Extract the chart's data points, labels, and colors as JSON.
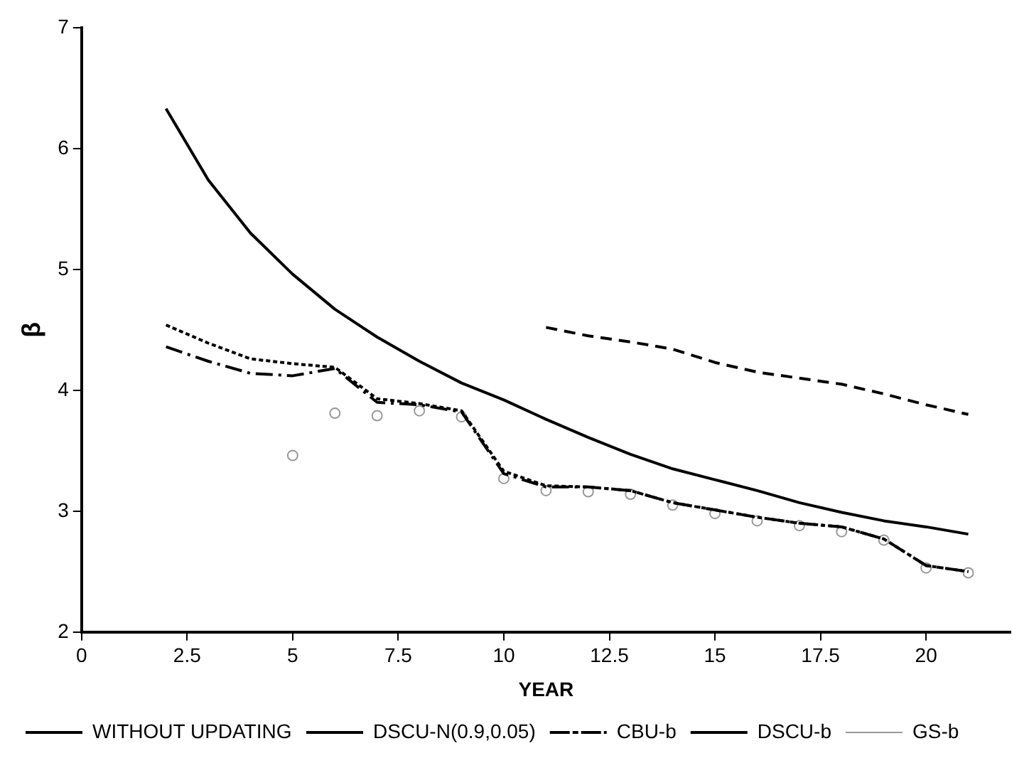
{
  "chart_data": {
    "type": "line",
    "xlabel": "YEAR",
    "ylabel": "β",
    "xlim": [
      0,
      22
    ],
    "xticks": [
      0,
      2.5,
      5,
      7.5,
      10,
      12.5,
      15,
      17.5,
      20
    ],
    "ylim": [
      2,
      7
    ],
    "yticks": [
      2,
      3,
      4,
      5,
      6,
      7
    ],
    "grid": false,
    "legend": "bottom",
    "series": [
      {
        "name": "WITHOUT UPDATING",
        "color": "#000000",
        "line_style": "solid",
        "x": [
          2,
          3,
          4,
          5,
          6,
          7,
          8,
          9,
          10,
          11,
          12,
          13,
          14,
          15,
          16,
          17,
          18,
          19,
          20,
          21
        ],
        "values": [
          6.33,
          5.74,
          5.3,
          4.96,
          4.67,
          4.44,
          4.24,
          4.06,
          3.92,
          3.76,
          3.61,
          3.47,
          3.35,
          3.26,
          3.17,
          3.07,
          2.99,
          2.92,
          2.87,
          2.81
        ]
      },
      {
        "name": "DSCU-N(0.9,0.05)",
        "color": "#000000",
        "line_style": "dashed",
        "x": [
          11,
          12,
          13,
          14,
          15,
          16,
          17,
          18,
          19,
          20,
          21
        ],
        "values": [
          4.52,
          4.45,
          4.4,
          4.34,
          4.23,
          4.15,
          4.1,
          4.05,
          3.97,
          3.88,
          3.8
        ]
      },
      {
        "name": "CBU-b",
        "color": "#000000",
        "line_style": "dashdot",
        "x": [
          2,
          3,
          4,
          5,
          6,
          7,
          8,
          9,
          10,
          11,
          12,
          13,
          14,
          15,
          16,
          17,
          18,
          19,
          20,
          21
        ],
        "values": [
          4.36,
          4.24,
          4.14,
          4.12,
          4.18,
          3.9,
          3.88,
          3.82,
          3.31,
          3.2,
          3.2,
          3.17,
          3.07,
          3.01,
          2.95,
          2.9,
          2.87,
          2.77,
          2.55,
          2.5
        ]
      },
      {
        "name": "DSCU-b",
        "color": "#000000",
        "line_style": "dotted",
        "x": [
          2,
          3,
          4,
          5,
          6,
          7,
          8,
          9,
          10,
          11,
          12,
          13,
          14,
          15,
          16,
          17,
          18,
          19,
          20,
          21
        ],
        "values": [
          4.54,
          4.39,
          4.26,
          4.22,
          4.19,
          3.93,
          3.89,
          3.83,
          3.33,
          3.21,
          3.2,
          3.17,
          3.07,
          3.01,
          2.95,
          2.9,
          2.87,
          2.77,
          2.55,
          2.5
        ]
      },
      {
        "name": "GS-b",
        "type": "scatter",
        "marker": "circle",
        "color": "#999999",
        "x": [
          5,
          6,
          7,
          8,
          9,
          10,
          11,
          12,
          13,
          14,
          15,
          16,
          17,
          18,
          19,
          20,
          21
        ],
        "values": [
          3.46,
          3.81,
          3.79,
          3.83,
          3.78,
          3.27,
          3.17,
          3.16,
          3.14,
          3.05,
          2.98,
          2.92,
          2.88,
          2.83,
          2.76,
          2.53,
          2.49
        ]
      }
    ]
  }
}
